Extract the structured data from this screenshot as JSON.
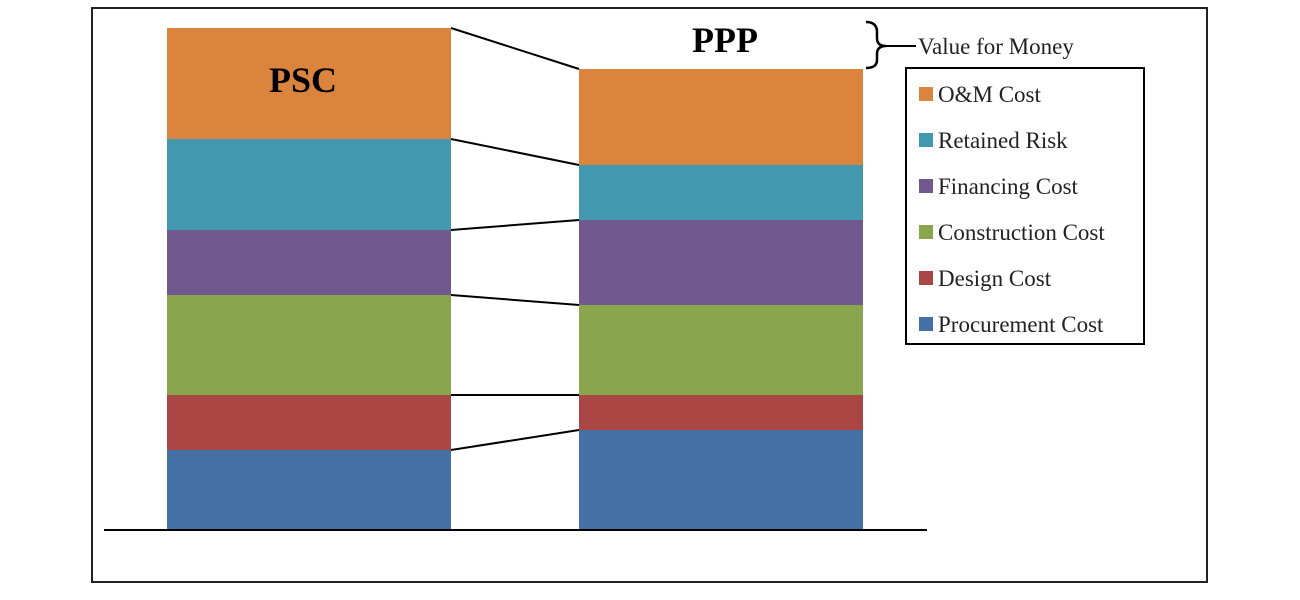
{
  "chart_data": {
    "type": "bar",
    "stacked": true,
    "categories": [
      "PSC",
      "PPP"
    ],
    "series": [
      {
        "name": "Procurement Cost",
        "color": "#4571a7",
        "values": [
          80,
          100
        ]
      },
      {
        "name": "Design Cost",
        "color": "#aa4644",
        "values": [
          55,
          35
        ]
      },
      {
        "name": "Construction Cost",
        "color": "#89a54e",
        "values": [
          100,
          90
        ]
      },
      {
        "name": "Financing Cost",
        "color": "#71588f",
        "values": [
          65,
          85
        ]
      },
      {
        "name": "Retained Risk",
        "color": "#4198af",
        "values": [
          91,
          55
        ]
      },
      {
        "name": "O&M Cost",
        "color": "#db843d",
        "values": [
          111,
          96
        ]
      }
    ],
    "annotation": "Value for Money",
    "legend_position": "right",
    "grid": false,
    "ylim": [
      0,
      502
    ]
  }
}
